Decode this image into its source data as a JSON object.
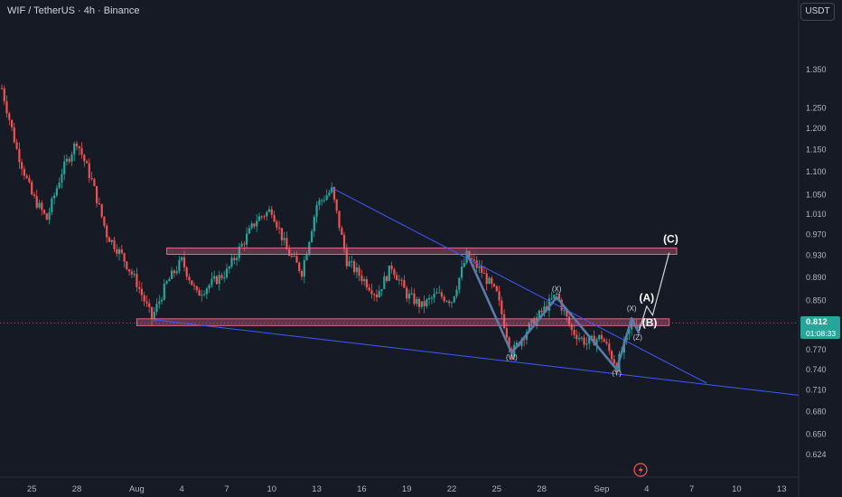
{
  "title": "WIF / TetherUS · 4h · Binance",
  "currency_button": "USDT",
  "last_price": "0.812",
  "countdown": "01:08:33",
  "colors": {
    "bg": "#161a25",
    "up": "#26a69a",
    "down": "#ef5350",
    "trendline": "#3d5afe",
    "zone": "#e06a8a",
    "pattern": "#5b7aa8",
    "projection": "#d1d4dc",
    "price_line": "#26a69a",
    "text": "#d1d4dc",
    "axis_text": "#b2b5be"
  },
  "chart_data": {
    "type": "candlestick",
    "title": "WIF / TetherUS · 4h · Binance",
    "y_scale": "log",
    "ylim": [
      0.605,
      1.47
    ],
    "y_ticks": [
      "1.350",
      "1.250",
      "1.200",
      "1.150",
      "1.100",
      "1.050",
      "1.010",
      "0.970",
      "0.930",
      "0.890",
      "0.850",
      "0.810",
      "0.770",
      "0.740",
      "0.710",
      "0.680",
      "0.650",
      "0.624"
    ],
    "x_ticks": [
      "25",
      "28",
      "Aug",
      "4",
      "7",
      "10",
      "13",
      "16",
      "19",
      "22",
      "25",
      "28",
      "Sep",
      "4",
      "7",
      "10",
      "13"
    ],
    "grid": false,
    "last_price": 0.812,
    "path": [
      [
        "Jul 23",
        1.3
      ],
      [
        "Jul 24",
        1.15
      ],
      [
        "Jul 25",
        1.05
      ],
      [
        "Jul 26",
        1.0
      ],
      [
        "Jul 27",
        1.1
      ],
      [
        "Jul 28",
        1.17
      ],
      [
        "Jul 29",
        1.08
      ],
      [
        "Jul 30",
        0.97
      ],
      [
        "Jul 31",
        0.93
      ],
      [
        "Aug 1",
        0.88
      ],
      [
        "Aug 2",
        0.82
      ],
      [
        "Aug 3",
        0.88
      ],
      [
        "Aug 4",
        0.92
      ],
      [
        "Aug 5",
        0.86
      ],
      [
        "Aug 6",
        0.88
      ],
      [
        "Aug 7",
        0.9
      ],
      [
        "Aug 8",
        0.95
      ],
      [
        "Aug 9",
        1.0
      ],
      [
        "Aug 10",
        1.02
      ],
      [
        "Aug 11",
        0.94
      ],
      [
        "Aug 12",
        0.9
      ],
      [
        "Aug 13",
        1.03
      ],
      [
        "Aug 14",
        1.06
      ],
      [
        "Aug 15",
        0.92
      ],
      [
        "Aug 16",
        0.89
      ],
      [
        "Aug 17",
        0.86
      ],
      [
        "Aug 18",
        0.91
      ],
      [
        "Aug 19",
        0.86
      ],
      [
        "Aug 20",
        0.84
      ],
      [
        "Aug 21",
        0.86
      ],
      [
        "Aug 22",
        0.85
      ],
      [
        "Aug 23",
        0.93
      ],
      [
        "Aug 24",
        0.9
      ],
      [
        "Aug 25",
        0.86
      ],
      [
        "Aug 26",
        0.765
      ],
      [
        "Aug 27",
        0.8
      ],
      [
        "Aug 28",
        0.83
      ],
      [
        "Aug 29",
        0.86
      ],
      [
        "Aug 30",
        0.8
      ],
      [
        "Aug 31",
        0.78
      ],
      [
        "Sep 1",
        0.79
      ],
      [
        "Sep 2",
        0.745
      ],
      [
        "Sep 3",
        0.81
      ],
      [
        "Sep 3.5",
        0.812
      ]
    ],
    "zones": [
      {
        "from": "Aug 3",
        "to": "Sep 6",
        "low": 0.932,
        "high": 0.944
      },
      {
        "from": "Aug 1",
        "to": "Sep 5.5",
        "low": 0.808,
        "high": 0.819
      }
    ],
    "trendlines": [
      {
        "from": [
          "Aug 14",
          1.065
        ],
        "to": [
          "Sep 8",
          0.72
        ]
      },
      {
        "from": [
          "Aug 2",
          0.818
        ],
        "to": [
          "Sep 12",
          0.708
        ]
      }
    ],
    "pattern_path": [
      [
        "Aug 23",
        0.935
      ],
      [
        "Aug 26",
        0.765
      ],
      [
        "Aug 29",
        0.855
      ],
      [
        "Sep 2",
        0.74
      ],
      [
        "Sep 3",
        0.82
      ],
      [
        "Sep 3.5",
        0.795
      ]
    ],
    "projection_path": [
      [
        "Sep 3.5",
        0.8
      ],
      [
        "Sep 4",
        0.84
      ],
      [
        "Sep 4.4",
        0.825
      ],
      [
        "Sep 5.5",
        0.935
      ]
    ],
    "annotations": [
      {
        "text": "(W)",
        "at": [
          "Aug 26",
          0.755
        ],
        "size": "small",
        "color": "#d1d4dc"
      },
      {
        "text": "(X)",
        "at": [
          "Aug 29",
          0.865
        ],
        "size": "small",
        "color": "#d1d4dc"
      },
      {
        "text": "(Y)",
        "at": [
          "Sep 2",
          0.731
        ],
        "size": "small",
        "color": "#d1d4dc"
      },
      {
        "text": "(X)",
        "at": [
          "Sep 3",
          0.832
        ],
        "size": "small",
        "color": "#d1d4dc"
      },
      {
        "text": "(Z)",
        "at": [
          "Sep 3.4",
          0.785
        ],
        "size": "small",
        "color": "#d1d4dc"
      },
      {
        "text": "(A)",
        "at": [
          "Sep 4",
          0.848
        ],
        "size": "large",
        "color": "#ffffff"
      },
      {
        "text": "(B)",
        "at": [
          "Sep 4.2",
          0.807
        ],
        "size": "large",
        "color": "#ffffff"
      },
      {
        "text": "(C)",
        "at": [
          "Sep 5.6",
          0.954
        ],
        "size": "large",
        "color": "#ffffff"
      }
    ]
  }
}
